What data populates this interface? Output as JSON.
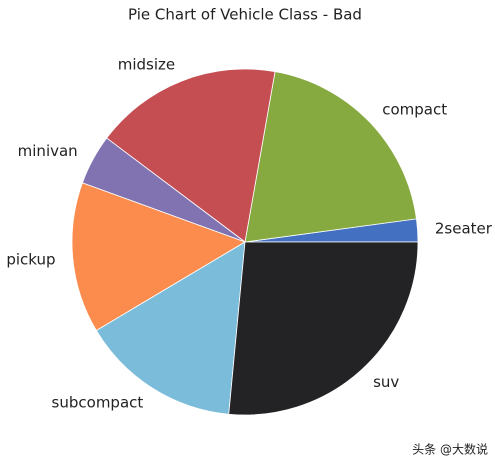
{
  "chart_data": {
    "type": "pie",
    "title": "Pie Chart of Vehicle Class - Bad",
    "categories": [
      "2seater",
      "compact",
      "midsize",
      "minivan",
      "pickup",
      "subcompact",
      "suv"
    ],
    "values": [
      5,
      47,
      41,
      11,
      33,
      35,
      62
    ],
    "colors": [
      "#4470c2",
      "#86aa40",
      "#c44e52",
      "#8172b2",
      "#fb8c4e",
      "#7bbcdb",
      "#232326"
    ]
  },
  "watermark": "头条 @大数说"
}
